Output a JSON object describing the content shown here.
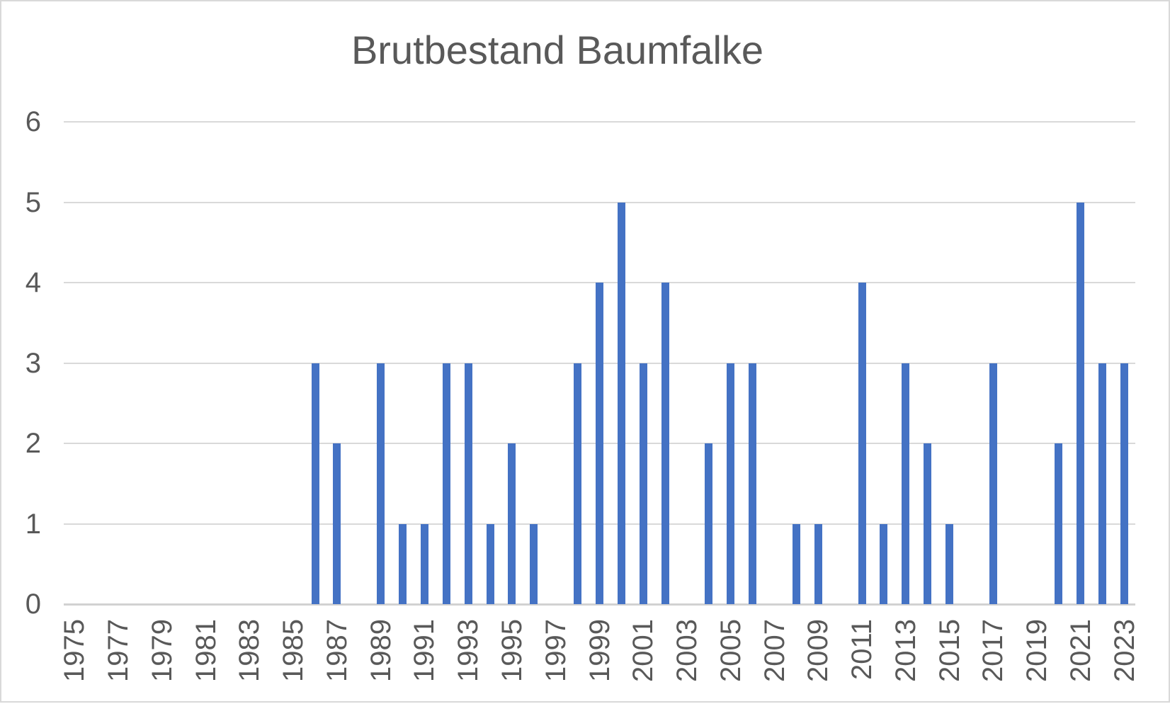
{
  "chart_data": {
    "type": "bar",
    "title": "Brutbestand Baumfalke",
    "categories": [
      "1975",
      "1976",
      "1977",
      "1978",
      "1979",
      "1980",
      "1981",
      "1982",
      "1983",
      "1984",
      "1985",
      "1986",
      "1987",
      "1988",
      "1989",
      "1990",
      "1991",
      "1992",
      "1993",
      "1994",
      "1995",
      "1996",
      "1997",
      "1998",
      "1999",
      "2000",
      "2001",
      "2002",
      "2003",
      "2004",
      "2005",
      "2006",
      "2007",
      "2008",
      "2009",
      "2010",
      "2011",
      "2012",
      "2013",
      "2014",
      "2015",
      "2016",
      "2017",
      "2018",
      "2019",
      "2020",
      "2021",
      "2022",
      "2023"
    ],
    "values": [
      0,
      0,
      0,
      0,
      0,
      0,
      0,
      0,
      0,
      0,
      0,
      3,
      2,
      0,
      3,
      1,
      1,
      3,
      3,
      1,
      2,
      1,
      0,
      3,
      4,
      5,
      3,
      4,
      0,
      2,
      3,
      3,
      0,
      1,
      1,
      0,
      4,
      1,
      3,
      2,
      1,
      0,
      3,
      0,
      0,
      2,
      5,
      3,
      3
    ],
    "xlabel": "",
    "ylabel": "",
    "ylim": [
      0,
      6
    ],
    "y_ticks": [
      0,
      1,
      2,
      3,
      4,
      5,
      6
    ],
    "x_tick_step": 2,
    "x_tick_labels": [
      "1975",
      "1977",
      "1979",
      "1981",
      "1983",
      "1985",
      "1987",
      "1989",
      "1991",
      "1993",
      "1995",
      "1997",
      "1999",
      "2001",
      "2003",
      "2005",
      "2007",
      "2009",
      "2011",
      "2013",
      "2015",
      "2017",
      "2019",
      "2021",
      "2023"
    ],
    "grid": true,
    "legend_position": "none",
    "colors": {
      "bar": "#4472C4",
      "gridline": "#D9D9D9",
      "axis_line": "#D2D2D2",
      "text": "#595959",
      "frame_border": "#D9D9D9",
      "background": "#FFFFFF"
    }
  }
}
